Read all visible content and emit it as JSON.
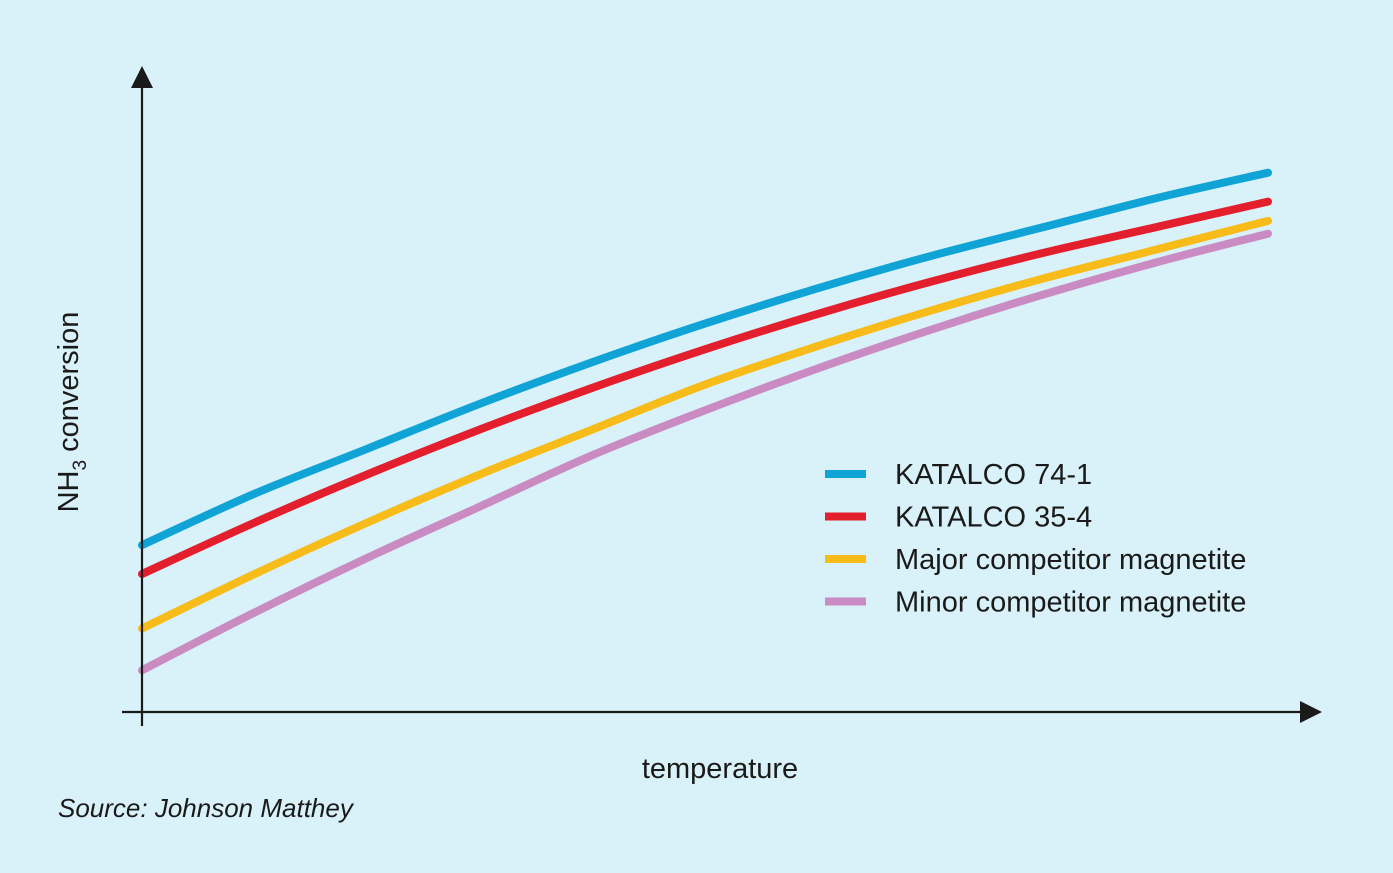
{
  "colors": {
    "background": "#d9f1f8",
    "axis": "#1a1a1a",
    "text": "#1a1a1a"
  },
  "source": "Source: Johnson Matthey",
  "chart_data": {
    "type": "line",
    "title": "",
    "xlabel": "temperature",
    "ylabel": {
      "prefix": "NH",
      "subscript": "3",
      "suffix": " conversion"
    },
    "x_ticks": "none",
    "y_ticks": "none",
    "grid": false,
    "legend_position": "center-right",
    "xlim": [
      0,
      1
    ],
    "ylim": [
      0,
      1
    ],
    "x": [
      0,
      0.1,
      0.2,
      0.3,
      0.4,
      0.5,
      0.6,
      0.7,
      0.8,
      0.9,
      1.0
    ],
    "series": [
      {
        "name": "KATALCO 74-1",
        "color": "#0fa3d6",
        "values": [
          0.26,
          0.34,
          0.41,
          0.48,
          0.545,
          0.605,
          0.66,
          0.71,
          0.755,
          0.8,
          0.84
        ]
      },
      {
        "name": "KATALCO 35-4",
        "color": "#e31e2d",
        "values": [
          0.215,
          0.295,
          0.37,
          0.44,
          0.505,
          0.565,
          0.62,
          0.67,
          0.715,
          0.755,
          0.795
        ]
      },
      {
        "name": "Major competitor magnetite",
        "color": "#f7bb1a",
        "values": [
          0.13,
          0.215,
          0.295,
          0.37,
          0.44,
          0.51,
          0.57,
          0.625,
          0.675,
          0.72,
          0.765
        ]
      },
      {
        "name": "Minor competitor magnetite",
        "color": "#c98bc2",
        "values": [
          0.065,
          0.155,
          0.24,
          0.32,
          0.4,
          0.47,
          0.535,
          0.595,
          0.65,
          0.7,
          0.745
        ]
      }
    ]
  }
}
